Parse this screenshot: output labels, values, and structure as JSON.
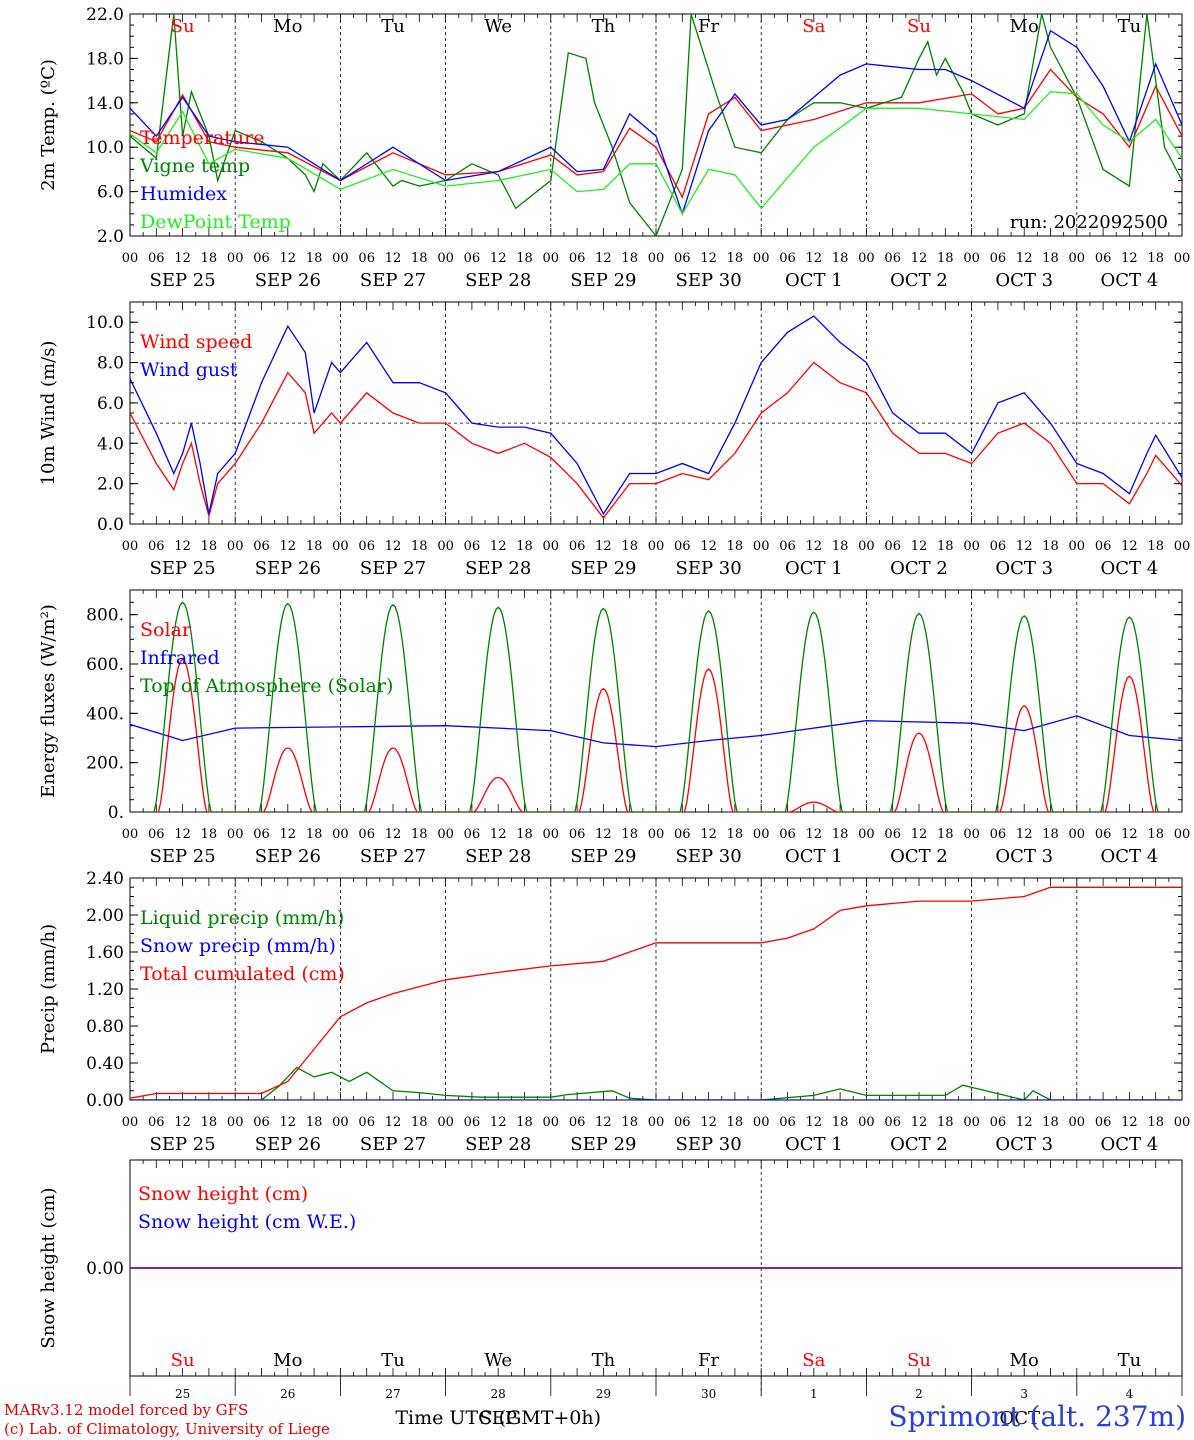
{
  "footer": {
    "credit_line1": "MARv3.12 model forced by GFS",
    "credit_line2": "(c) Lab. of Climatology, University of Liege",
    "station": "Sprimont (alt. 237m)",
    "xlabel": "Time UTC (GMT+0h)",
    "month_bottom_left": "SEP",
    "month_bottom_right": "OCT",
    "bottom_day_numbers": [
      "25",
      "26",
      "27",
      "28",
      "29",
      "30",
      "1",
      "2",
      "3",
      "4"
    ]
  },
  "colors": {
    "red": "#ff0000",
    "green": "#008000",
    "blue": "#0000ff",
    "lightgreen": "#22ee22",
    "purple": "#800080",
    "weekend": "#ff0000",
    "weekday": "#000000"
  },
  "axis": {
    "hour_ticks": [
      "00",
      "06",
      "12",
      "18"
    ],
    "date_labels": [
      "SEP 25",
      "SEP 26",
      "SEP 27",
      "SEP 28",
      "SEP 29",
      "SEP 30",
      "OCT  1",
      "OCT  2",
      "OCT  3",
      "OCT  4"
    ],
    "weekdays": [
      "Su",
      "Mo",
      "Tu",
      "We",
      "Th",
      "Fr",
      "Sa",
      "Su",
      "Mo",
      "Tu"
    ],
    "weekend_flags": [
      true,
      false,
      false,
      false,
      false,
      false,
      true,
      true,
      false,
      false
    ],
    "run_label": "run: 2022092500"
  },
  "chart_data": [
    {
      "type": "line",
      "ylabel": "2m Temp. (ºC)",
      "ylim": [
        2.0,
        22.0
      ],
      "yticks": [
        "2.0",
        "6.0",
        "10.0",
        "14.0",
        "18.0",
        "22.0"
      ],
      "x_unit": "hours since SEP 25 00 UTC",
      "series": [
        {
          "name": "Temperature",
          "color": "#ff0000",
          "x": [
            0,
            6,
            12,
            18,
            24,
            36,
            48,
            60,
            72,
            84,
            96,
            102,
            108,
            114,
            120,
            126,
            132,
            138,
            144,
            156,
            168,
            180,
            192,
            198,
            204,
            210,
            216,
            222,
            228,
            234,
            240
          ],
          "y": [
            11.5,
            10.5,
            14.7,
            10.5,
            10.0,
            9.5,
            7.0,
            9.5,
            7.5,
            7.8,
            9.3,
            7.5,
            7.8,
            11.7,
            10.0,
            5.5,
            13.0,
            14.5,
            11.5,
            12.5,
            14.0,
            14.0,
            14.8,
            13.0,
            13.5,
            17.0,
            14.5,
            13.0,
            10.0,
            15.5,
            11.0
          ]
        },
        {
          "name": "Vigne temp",
          "color": "#008000",
          "x": [
            0,
            6,
            10,
            12,
            14,
            18,
            20,
            24,
            30,
            36,
            40,
            42,
            44,
            48,
            54,
            60,
            62,
            66,
            72,
            78,
            84,
            88,
            96,
            100,
            104,
            106,
            110,
            114,
            120,
            126,
            128,
            134,
            138,
            144,
            150,
            156,
            162,
            168,
            176,
            180,
            182,
            184,
            186,
            190,
            192,
            198,
            204,
            208,
            210,
            216,
            222,
            228,
            232,
            236,
            240
          ],
          "y": [
            11.0,
            9.0,
            22.0,
            11.0,
            15.0,
            11.0,
            7.0,
            11.5,
            10.5,
            9.0,
            7.5,
            6.0,
            8.5,
            7.0,
            9.5,
            6.5,
            7.0,
            6.5,
            7.0,
            8.5,
            7.5,
            4.5,
            7.0,
            18.5,
            18.0,
            14.0,
            10.0,
            5.0,
            2.0,
            8.0,
            22.0,
            14.5,
            10.0,
            9.5,
            12.5,
            14.0,
            14.0,
            13.5,
            14.5,
            18.0,
            19.5,
            16.5,
            18.0,
            15.0,
            13.0,
            12.0,
            13.0,
            22.0,
            19.0,
            14.5,
            8.0,
            6.5,
            22.0,
            10.0,
            7.0
          ]
        },
        {
          "name": "Humidex",
          "color": "#0000ff",
          "x": [
            0,
            6,
            12,
            18,
            24,
            36,
            48,
            60,
            72,
            84,
            96,
            102,
            108,
            114,
            120,
            126,
            132,
            138,
            144,
            150,
            156,
            162,
            168,
            180,
            186,
            192,
            204,
            210,
            216,
            222,
            228,
            234,
            240
          ],
          "y": [
            13.5,
            11.0,
            14.5,
            11.0,
            10.5,
            10.0,
            7.0,
            10.0,
            7.0,
            7.8,
            10.0,
            7.8,
            8.0,
            13.0,
            11.0,
            4.0,
            11.5,
            14.8,
            12.0,
            12.5,
            14.5,
            16.5,
            17.5,
            17.0,
            17.0,
            16.0,
            13.5,
            20.5,
            19.0,
            15.5,
            10.5,
            17.5,
            12.0
          ]
        },
        {
          "name": "DewPoint Temp",
          "color": "#22ee22",
          "x": [
            0,
            6,
            12,
            18,
            24,
            36,
            48,
            60,
            72,
            84,
            96,
            102,
            108,
            114,
            120,
            126,
            132,
            138,
            144,
            156,
            168,
            180,
            192,
            204,
            210,
            216,
            222,
            228,
            234,
            240
          ],
          "y": [
            11.2,
            9.5,
            13.2,
            8.5,
            9.8,
            9.0,
            6.2,
            8.0,
            6.5,
            7.0,
            8.0,
            6.0,
            6.2,
            8.5,
            8.5,
            4.0,
            8.0,
            7.5,
            4.5,
            10.0,
            13.5,
            13.5,
            13.0,
            12.5,
            15.0,
            14.8,
            12.0,
            10.5,
            12.5,
            9.0
          ]
        }
      ]
    },
    {
      "type": "line",
      "ylabel": "10m Wind (m/s)",
      "ylim": [
        0.0,
        11.0
      ],
      "yticks": [
        "0.0",
        "2.0",
        "4.0",
        "6.0",
        "8.0",
        "10.0"
      ],
      "reference_line": 5.0,
      "series": [
        {
          "name": "Wind speed",
          "color": "#ff0000",
          "x": [
            0,
            6,
            10,
            12,
            14,
            16,
            18,
            20,
            24,
            30,
            36,
            40,
            42,
            46,
            48,
            54,
            60,
            66,
            72,
            78,
            84,
            90,
            96,
            102,
            108,
            114,
            120,
            126,
            132,
            138,
            144,
            150,
            156,
            162,
            168,
            174,
            180,
            186,
            192,
            198,
            204,
            210,
            216,
            222,
            228,
            232,
            234,
            240
          ],
          "y": [
            5.5,
            3.0,
            1.7,
            3.0,
            4.0,
            2.0,
            0.4,
            2.0,
            3.0,
            5.0,
            7.5,
            6.5,
            4.5,
            5.5,
            5.0,
            6.5,
            5.5,
            5.0,
            5.0,
            4.0,
            3.5,
            4.0,
            3.3,
            2.0,
            0.3,
            2.0,
            2.0,
            2.5,
            2.2,
            3.5,
            5.5,
            6.5,
            8.0,
            7.0,
            6.5,
            4.5,
            3.5,
            3.5,
            3.0,
            4.5,
            5.0,
            4.0,
            2.0,
            2.0,
            1.0,
            2.5,
            3.4,
            1.9
          ]
        },
        {
          "name": "Wind gust",
          "color": "#0000ff",
          "x": [
            0,
            6,
            10,
            12,
            14,
            16,
            18,
            20,
            24,
            30,
            36,
            40,
            42,
            46,
            48,
            54,
            60,
            66,
            72,
            78,
            84,
            90,
            96,
            102,
            108,
            114,
            120,
            126,
            132,
            138,
            144,
            150,
            156,
            162,
            168,
            174,
            180,
            186,
            192,
            198,
            204,
            210,
            216,
            222,
            228,
            232,
            234,
            240
          ],
          "y": [
            7.2,
            4.5,
            2.5,
            3.5,
            5.0,
            3.0,
            0.5,
            2.5,
            3.5,
            7.0,
            9.8,
            8.5,
            5.5,
            8.0,
            7.5,
            9.0,
            7.0,
            7.0,
            6.5,
            5.0,
            4.8,
            4.8,
            4.5,
            3.0,
            0.5,
            2.5,
            2.5,
            3.0,
            2.5,
            5.0,
            8.0,
            9.5,
            10.3,
            9.0,
            8.0,
            5.5,
            4.5,
            4.5,
            3.5,
            6.0,
            6.5,
            5.0,
            3.0,
            2.5,
            1.5,
            3.5,
            4.4,
            2.3
          ]
        }
      ]
    },
    {
      "type": "line",
      "ylabel": "Energy fluxes (W/m²)",
      "ylim": [
        0,
        900
      ],
      "yticks": [
        "0.",
        "200.",
        "400.",
        "600.",
        "800."
      ],
      "series": [
        {
          "name": "Solar",
          "color": "#ff0000",
          "daily_peak_hour": 12,
          "daily_peaks": [
            620,
            260,
            260,
            140,
            500,
            580,
            40,
            320,
            430,
            550
          ]
        },
        {
          "name": "Infrared",
          "color": "#0000ff",
          "x": [
            0,
            12,
            24,
            48,
            72,
            96,
            108,
            120,
            132,
            144,
            168,
            192,
            204,
            216,
            228,
            240
          ],
          "y": [
            355,
            290,
            340,
            345,
            350,
            330,
            280,
            265,
            290,
            310,
            370,
            360,
            330,
            390,
            310,
            290
          ]
        },
        {
          "name": "Top of Atmosphere (Solar)",
          "color": "#008000",
          "daily_peak_hour": 12,
          "daily_peaks": [
            850,
            845,
            840,
            830,
            825,
            815,
            810,
            805,
            795,
            790
          ]
        }
      ]
    },
    {
      "type": "line",
      "ylabel": "Precip (mm/h)",
      "ylim": [
        0.0,
        2.4
      ],
      "yticks": [
        "0.00",
        "0.40",
        "0.80",
        "1.20",
        "1.60",
        "2.00",
        "2.40"
      ],
      "series": [
        {
          "name": "Liquid precip (mm/h)",
          "color": "#008000",
          "x": [
            0,
            30,
            34,
            38,
            42,
            46,
            50,
            54,
            60,
            66,
            72,
            80,
            96,
            100,
            110,
            114,
            120,
            144,
            156,
            162,
            168,
            186,
            190,
            204,
            206,
            210,
            240
          ],
          "y": [
            0,
            0,
            0.15,
            0.35,
            0.25,
            0.3,
            0.2,
            0.3,
            0.1,
            0.08,
            0.05,
            0.03,
            0.03,
            0.06,
            0.1,
            0.02,
            0.0,
            0.0,
            0.05,
            0.12,
            0.05,
            0.05,
            0.16,
            0.0,
            0.1,
            0.0,
            0.0
          ]
        },
        {
          "name": "Snow precip (mm/h)",
          "color": "#0000ff",
          "x": [
            0,
            240
          ],
          "y": [
            0,
            0
          ]
        },
        {
          "name": "Total cumulated (cm)",
          "color": "#ff0000",
          "x": [
            0,
            6,
            30,
            36,
            42,
            48,
            54,
            60,
            72,
            84,
            96,
            108,
            114,
            120,
            144,
            150,
            156,
            162,
            168,
            180,
            192,
            204,
            210,
            240
          ],
          "y": [
            0.02,
            0.07,
            0.07,
            0.2,
            0.55,
            0.9,
            1.05,
            1.15,
            1.3,
            1.38,
            1.45,
            1.5,
            1.6,
            1.7,
            1.7,
            1.75,
            1.85,
            2.05,
            2.1,
            2.15,
            2.15,
            2.2,
            2.3,
            2.3
          ]
        }
      ]
    },
    {
      "type": "line",
      "ylabel": "Snow height (cm)",
      "ylim": [
        -1,
        1
      ],
      "yticks": [
        "0.00"
      ],
      "series": [
        {
          "name": "Snow height (cm)",
          "color": "#ff0000",
          "x": [
            0,
            240
          ],
          "y": [
            0,
            0
          ]
        },
        {
          "name": "Snow height (cm W.E.)",
          "color": "#0000ff",
          "x": [
            0,
            240
          ],
          "y": [
            0,
            0
          ]
        }
      ]
    }
  ]
}
